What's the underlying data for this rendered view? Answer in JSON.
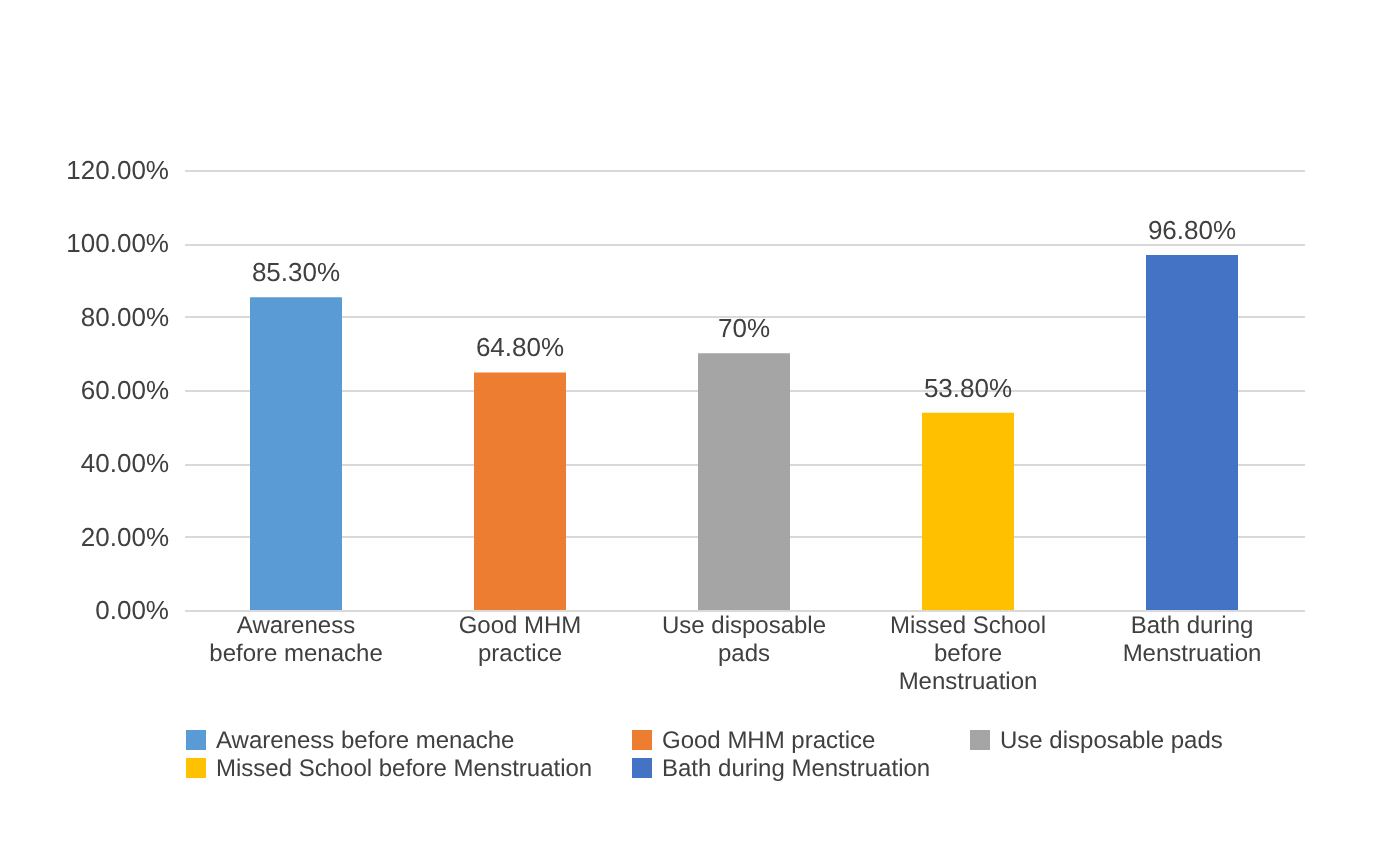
{
  "chart_data": {
    "type": "bar",
    "categories": [
      "Awareness before menache",
      "Good MHM practice",
      "Use disposable pads",
      "Missed School before Menstruation",
      "Bath during Menstruation"
    ],
    "series": [
      {
        "name": "Awareness before menache",
        "color": "#5b9bd5",
        "values": [
          85.3,
          null,
          null,
          null,
          null
        ],
        "value_labels": [
          "85.30%",
          null,
          null,
          null,
          null
        ]
      },
      {
        "name": "Good MHM practice",
        "color": "#ed7d31",
        "values": [
          null,
          64.8,
          null,
          null,
          null
        ],
        "value_labels": [
          null,
          "64.80%",
          null,
          null,
          null
        ]
      },
      {
        "name": "Use disposable pads",
        "color": "#a5a5a5",
        "values": [
          null,
          null,
          70,
          null,
          null
        ],
        "value_labels": [
          null,
          null,
          "70%",
          null,
          null
        ]
      },
      {
        "name": "Missed School before Menstruation",
        "color": "#ffc000",
        "values": [
          null,
          null,
          null,
          53.8,
          null
        ],
        "value_labels": [
          null,
          null,
          null,
          "53.80%",
          null
        ]
      },
      {
        "name": "Bath during Menstruation",
        "color": "#4472c4",
        "values": [
          null,
          null,
          null,
          null,
          96.8
        ],
        "value_labels": [
          null,
          null,
          null,
          null,
          "96.80%"
        ]
      }
    ],
    "ylim": [
      0,
      120
    ],
    "yticks": [
      {
        "value": 0,
        "label": "0.00%"
      },
      {
        "value": 20,
        "label": "20.00%"
      },
      {
        "value": 40,
        "label": "40.00%"
      },
      {
        "value": 60,
        "label": "60.00%"
      },
      {
        "value": 80,
        "label": "80.00%"
      },
      {
        "value": 100,
        "label": "100.00%"
      },
      {
        "value": 120,
        "label": "120.00%"
      }
    ],
    "grid": "y",
    "legend": "bottom"
  }
}
